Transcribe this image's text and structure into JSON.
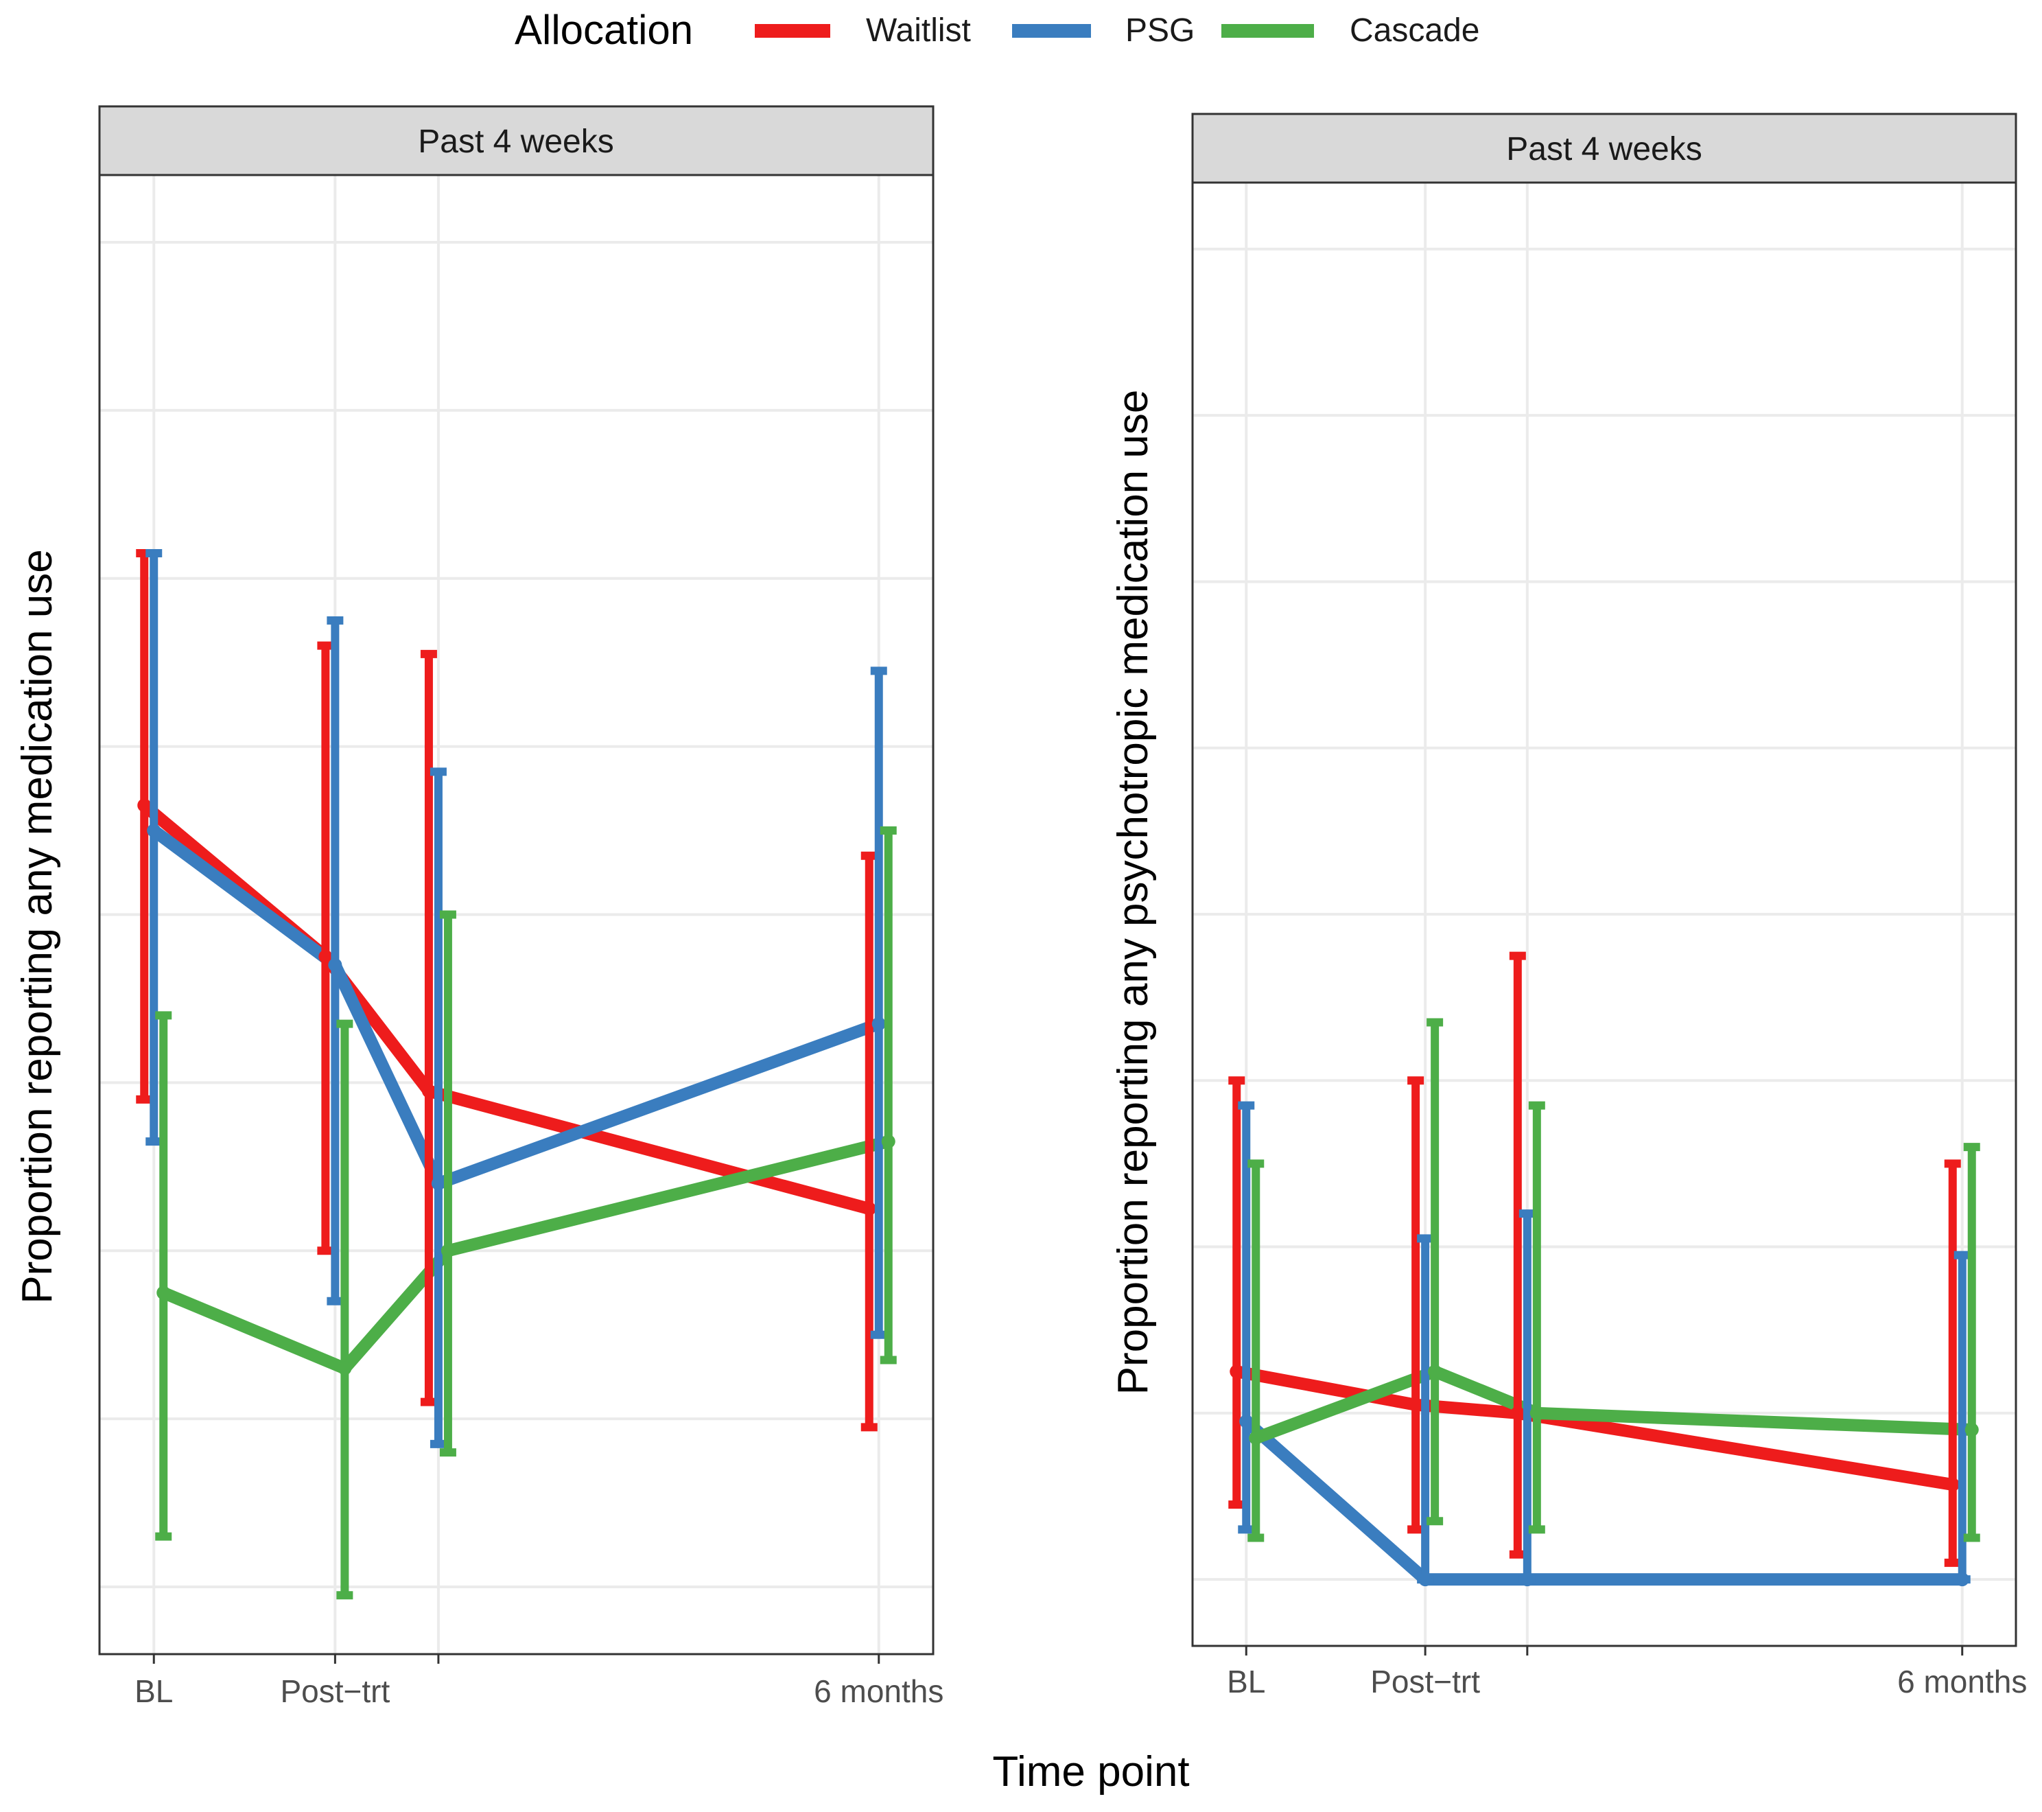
{
  "legend": {
    "title": "Allocation",
    "items": [
      {
        "label": "Waitlist",
        "color": "#EE1C1C"
      },
      {
        "label": "PSG",
        "color": "#3A7DBF"
      },
      {
        "label": "Cascade",
        "color": "#4DAE48"
      }
    ]
  },
  "shared_xlabel": "Time point",
  "chart_data": [
    {
      "type": "line",
      "panel_title": "Past 4 weeks",
      "title": "",
      "ylabel": "Proportion reporting any medication use",
      "xlabel": "Time point",
      "x_axis": {
        "range": [
          0.7,
          5.3
        ],
        "ticks": [
          {
            "x": 1,
            "label": "BL"
          },
          {
            "x": 2,
            "label": "Post−trt"
          },
          {
            "x": 2.57,
            "label": ""
          },
          {
            "x": 5,
            "label": "6 months"
          }
        ]
      },
      "y_axis": {
        "range": [
          0,
          0.88
        ],
        "gridlines": [
          0.04,
          0.14,
          0.24,
          0.34,
          0.44,
          0.54,
          0.64,
          0.74,
          0.84
        ],
        "tick_labels_visible": false
      },
      "series": [
        {
          "name": "Waitlist",
          "color": "#EE1C1C",
          "points": [
            {
              "x": 1,
              "y": 0.505,
              "lo": 0.33,
              "hi": 0.655
            },
            {
              "x": 2,
              "y": 0.415,
              "lo": 0.24,
              "hi": 0.6
            },
            {
              "x": 2.57,
              "y": 0.335,
              "lo": 0.15,
              "hi": 0.595
            },
            {
              "x": 5,
              "y": 0.265,
              "lo": 0.135,
              "hi": 0.475
            }
          ]
        },
        {
          "name": "PSG",
          "color": "#3A7DBF",
          "points": [
            {
              "x": 1,
              "y": 0.49,
              "lo": 0.305,
              "hi": 0.655
            },
            {
              "x": 2,
              "y": 0.41,
              "lo": 0.21,
              "hi": 0.615
            },
            {
              "x": 2.57,
              "y": 0.28,
              "lo": 0.125,
              "hi": 0.525
            },
            {
              "x": 5,
              "y": 0.375,
              "lo": 0.19,
              "hi": 0.585
            }
          ]
        },
        {
          "name": "Cascade",
          "color": "#4DAE48",
          "points": [
            {
              "x": 1,
              "y": 0.215,
              "lo": 0.07,
              "hi": 0.38
            },
            {
              "x": 2,
              "y": 0.17,
              "lo": 0.035,
              "hi": 0.375
            },
            {
              "x": 2.57,
              "y": 0.24,
              "lo": 0.12,
              "hi": 0.44
            },
            {
              "x": 5,
              "y": 0.305,
              "lo": 0.175,
              "hi": 0.49
            }
          ]
        }
      ]
    },
    {
      "type": "line",
      "panel_title": "Past 4 weeks",
      "title": "",
      "ylabel": "Proportion reporting any psychotropic medication use",
      "xlabel": "Time point",
      "x_axis": {
        "range": [
          0.7,
          5.3
        ],
        "ticks": [
          {
            "x": 1,
            "label": "BL"
          },
          {
            "x": 2,
            "label": "Post−trt"
          },
          {
            "x": 2.57,
            "label": ""
          },
          {
            "x": 5,
            "label": "6 months"
          }
        ]
      },
      "y_axis": {
        "range": [
          -0.04,
          0.84
        ],
        "gridlines": [
          0,
          0.1,
          0.2,
          0.3,
          0.4,
          0.5,
          0.6,
          0.7,
          0.8
        ],
        "tick_labels_visible": false
      },
      "series": [
        {
          "name": "Waitlist",
          "color": "#EE1C1C",
          "points": [
            {
              "x": 1,
              "y": 0.125,
              "lo": 0.045,
              "hi": 0.3
            },
            {
              "x": 2,
              "y": 0.105,
              "lo": 0.03,
              "hi": 0.3
            },
            {
              "x": 2.57,
              "y": 0.1,
              "lo": 0.015,
              "hi": 0.375
            },
            {
              "x": 5,
              "y": 0.057,
              "lo": 0.01,
              "hi": 0.25
            }
          ]
        },
        {
          "name": "PSG",
          "color": "#3A7DBF",
          "points": [
            {
              "x": 1,
              "y": 0.095,
              "lo": 0.03,
              "hi": 0.285
            },
            {
              "x": 2,
              "y": 0.0,
              "lo": 0.0,
              "hi": 0.205
            },
            {
              "x": 2.57,
              "y": 0.0,
              "lo": 0.0,
              "hi": 0.22
            },
            {
              "x": 5,
              "y": 0.0,
              "lo": 0.0,
              "hi": 0.195
            }
          ]
        },
        {
          "name": "Cascade",
          "color": "#4DAE48",
          "points": [
            {
              "x": 1,
              "y": 0.085,
              "lo": 0.025,
              "hi": 0.25
            },
            {
              "x": 2,
              "y": 0.125,
              "lo": 0.035,
              "hi": 0.335
            },
            {
              "x": 2.57,
              "y": 0.1,
              "lo": 0.03,
              "hi": 0.285
            },
            {
              "x": 5,
              "y": 0.09,
              "lo": 0.025,
              "hi": 0.26
            }
          ]
        }
      ]
    }
  ]
}
